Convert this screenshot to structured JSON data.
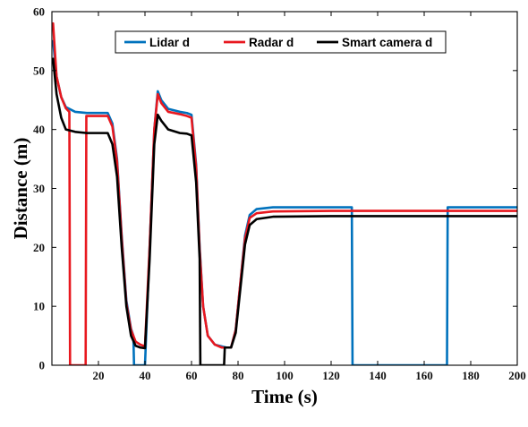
{
  "chart_data": {
    "type": "line",
    "title": "",
    "xlabel": "Time (s)",
    "ylabel": "Distance (m)",
    "xlim": [
      0,
      200
    ],
    "ylim": [
      0,
      60
    ],
    "xticks": [
      20,
      40,
      60,
      80,
      100,
      120,
      140,
      160,
      180,
      200
    ],
    "yticks": [
      0,
      10,
      20,
      30,
      40,
      50,
      60
    ],
    "grid": false,
    "legend_position": "top",
    "series": [
      {
        "name": "Lidar d",
        "color": "#0072BD",
        "x": [
          0.5,
          2,
          4,
          6,
          10,
          15,
          20,
          24,
          26,
          28,
          30,
          32,
          34,
          35,
          35.3,
          40,
          40.3,
          42,
          44,
          45.5,
          47,
          50,
          55,
          58,
          60,
          62,
          63.5,
          65,
          67,
          70,
          75,
          77,
          79,
          81,
          83,
          85,
          88,
          95,
          110,
          128.9,
          129.2,
          169.8,
          170.1,
          180,
          200
        ],
        "y": [
          55,
          49,
          45.5,
          43.8,
          43,
          42.8,
          42.8,
          42.8,
          41,
          35,
          22,
          11,
          6.2,
          5,
          0,
          0,
          3,
          20,
          40,
          46.5,
          45,
          43.5,
          43,
          42.8,
          42.5,
          34,
          20,
          10,
          5,
          3.5,
          3,
          3,
          6,
          14,
          22,
          25.5,
          26.5,
          26.8,
          26.8,
          26.8,
          0,
          0,
          26.8,
          26.8,
          26.8
        ]
      },
      {
        "name": "Radar d",
        "color": "#E8181F",
        "x": [
          0.5,
          2,
          4,
          6,
          7.5,
          7.8,
          14.5,
          14.8,
          20,
          24,
          26,
          28,
          30,
          32,
          34,
          36,
          38,
          40,
          42,
          44,
          45.5,
          47,
          50,
          55,
          58,
          60,
          62,
          63.5,
          65,
          67,
          70,
          73,
          75,
          77,
          79,
          81,
          83,
          85,
          88,
          95,
          120,
          160,
          200
        ],
        "y": [
          58,
          49,
          45.5,
          43.6,
          43,
          0,
          0,
          42.3,
          42.3,
          42.3,
          40.5,
          34.5,
          21.5,
          10.5,
          6,
          4,
          3.5,
          3.2,
          20,
          40,
          46,
          44.5,
          43,
          42.6,
          42.3,
          42,
          33.5,
          19.5,
          10,
          5,
          3.5,
          3,
          3,
          3,
          6,
          14,
          21.5,
          25,
          25.8,
          26.1,
          26.2,
          26.2,
          26.2
        ]
      },
      {
        "name": "Smart camera d",
        "color": "#000000",
        "x": [
          0.5,
          2,
          4,
          6,
          10,
          15,
          20,
          24,
          26,
          28,
          30,
          32,
          34,
          36,
          38,
          40,
          42,
          44,
          45.5,
          47,
          50,
          55,
          58,
          60,
          62,
          63.5,
          63.8,
          74,
          74.3,
          77,
          79,
          81,
          83,
          85,
          88,
          95,
          120,
          160,
          200
        ],
        "y": [
          52,
          46,
          42,
          40,
          39.6,
          39.4,
          39.4,
          39.4,
          37.5,
          32,
          20,
          10,
          5,
          3.3,
          3,
          2.9,
          18,
          37.5,
          42.5,
          41.5,
          40,
          39.4,
          39.3,
          39,
          31,
          18,
          0,
          0,
          3,
          3,
          5.5,
          13,
          20.5,
          23.8,
          24.8,
          25.2,
          25.3,
          25.3,
          25.3
        ]
      }
    ]
  }
}
